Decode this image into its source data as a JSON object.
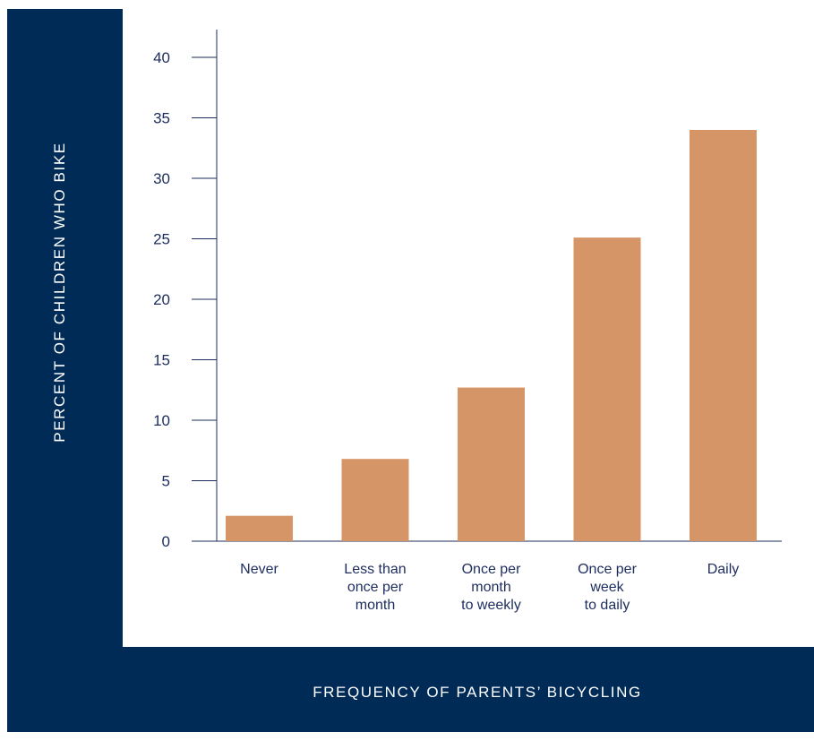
{
  "colors": {
    "frame": "#002b57",
    "bar": "#d69566",
    "axis": "#1d2c5e",
    "label": "#1d2c5e",
    "panel": "#ffffff"
  },
  "chart_data": {
    "type": "bar",
    "categories": [
      [
        "Never"
      ],
      [
        "Less than",
        "once per",
        "month"
      ],
      [
        "Once per",
        "month",
        "to weekly"
      ],
      [
        "Once per",
        "week",
        "to daily"
      ],
      [
        "Daily"
      ]
    ],
    "values": [
      2.1,
      6.8,
      12.7,
      25.1,
      34.0
    ],
    "title": "",
    "xlabel": "FREQUENCY OF PARENTS’ BICYCLING",
    "ylabel": "PERCENT OF CHILDREN WHO BIKE",
    "ylim": [
      0,
      40
    ],
    "yticks": [
      0,
      5,
      10,
      15,
      20,
      25,
      30,
      35,
      40
    ],
    "grid": false,
    "legend": "none"
  }
}
